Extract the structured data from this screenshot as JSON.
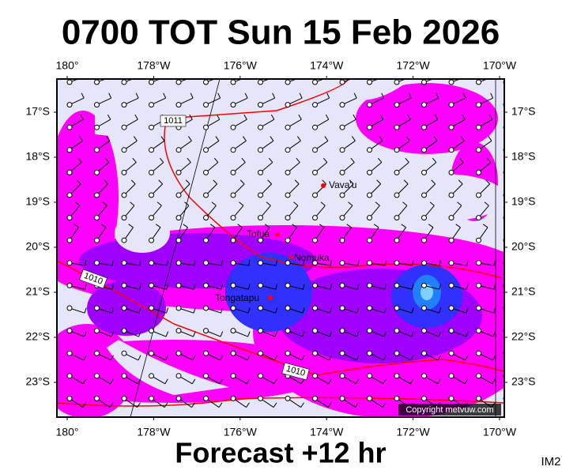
{
  "header": {
    "title": "0700 TOT Sun 15 Feb 2026"
  },
  "map": {
    "longitude_labels": [
      "180°",
      "178°W",
      "176°W",
      "174°W",
      "172°W",
      "170°W"
    ],
    "latitude_labels": [
      "17°S",
      "18°S",
      "19°S",
      "20°S",
      "21°S",
      "22°S",
      "23°S"
    ],
    "places": [
      {
        "label": "Vava'u"
      },
      {
        "label": "Tofua"
      },
      {
        "label": "Nomuka"
      },
      {
        "label": "Tongatapu"
      }
    ],
    "isobar_labels": [
      "1011",
      "1010",
      "1010"
    ],
    "copyright": "Copyright metvuw.com"
  },
  "footer": {
    "caption": "Forecast +12 hr",
    "code": "IM2"
  }
}
